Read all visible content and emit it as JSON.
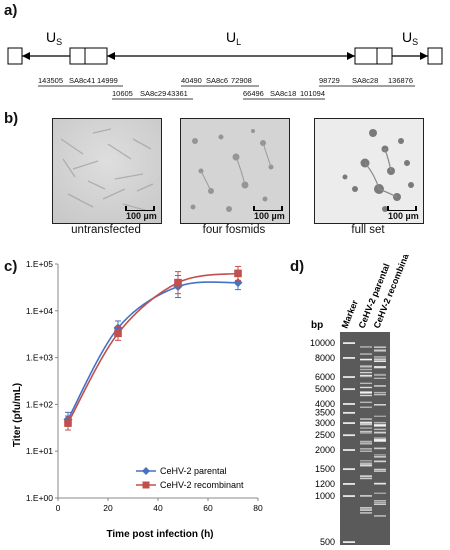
{
  "panel_a": {
    "label": "a)",
    "region_labels": [
      {
        "main": "U",
        "sub": "S"
      },
      {
        "main": "U",
        "sub": "L"
      },
      {
        "main": "U",
        "sub": "S"
      }
    ],
    "fosmids": [
      {
        "start": "143505",
        "name": "SA8c41",
        "end": "14999"
      },
      {
        "start": "10605",
        "name": "SA8c29",
        "end": "43361"
      },
      {
        "start": "40490",
        "name": "SA8c6",
        "end": "72908"
      },
      {
        "start": "66496",
        "name": "SA8c18",
        "end": "101094"
      },
      {
        "start": "98729",
        "name": "SA8c28",
        "end": "136876"
      }
    ]
  },
  "panel_b": {
    "label": "b)",
    "images": [
      {
        "caption": "untransfected",
        "scale_bar": "100 µm"
      },
      {
        "caption": "four fosmids",
        "scale_bar": "100 µm"
      },
      {
        "caption": "full set",
        "scale_bar": "100 µm"
      }
    ]
  },
  "panel_c": {
    "label": "c)",
    "colors": {
      "parental": "#4472c4",
      "recombinant": "#c0504d"
    }
  },
  "panel_d": {
    "label": "d)",
    "unit": "bp",
    "lanes": [
      "Marker",
      "CeHV-2 parental",
      "CeHV-2 recombinant"
    ],
    "sizes": [
      "10000",
      "8000",
      "6000",
      "5000",
      "4000",
      "3500",
      "3000",
      "2500",
      "2000",
      "1500",
      "1200",
      "1000",
      "500"
    ]
  },
  "chart_data": {
    "type": "line",
    "title": "",
    "xlabel": "Time post infection (h)",
    "ylabel": "Titer (pfu/mL)",
    "xlim": [
      0,
      80
    ],
    "xticks": [
      "0",
      "20",
      "40",
      "60",
      "80"
    ],
    "ylim": [
      1,
      100000
    ],
    "yscale": "log",
    "yticks": [
      "1.E+00",
      "1.E+01",
      "1.E+02",
      "1.E+03",
      "1.E+04",
      "1.E+05"
    ],
    "legend_position": "bottom-center",
    "series": [
      {
        "name": "CeHV-2 parental",
        "marker": "diamond",
        "color": "#4472c4",
        "x": [
          4,
          24,
          48,
          72
        ],
        "y": [
          48,
          4300,
          33000,
          40000
        ]
      },
      {
        "name": "CeHV-2 recombinant",
        "marker": "square",
        "color": "#c0504d",
        "x": [
          4,
          24,
          48,
          72
        ],
        "y": [
          40,
          3300,
          40000,
          63000
        ]
      }
    ]
  }
}
